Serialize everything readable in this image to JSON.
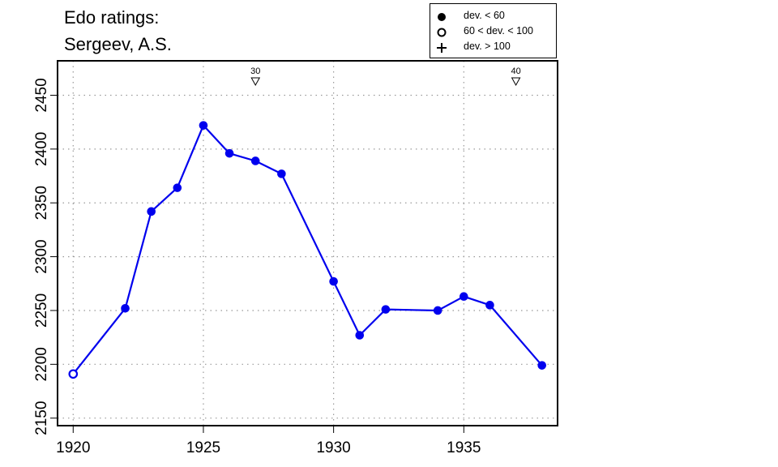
{
  "title_line1": "Edo ratings:",
  "title_line2": "Sergeev, A.S.",
  "legend": [
    {
      "symbol": "filled-circle",
      "label": "dev. < 60"
    },
    {
      "symbol": "open-circle",
      "label": "60 < dev. < 100"
    },
    {
      "symbol": "plus",
      "label": "dev. > 100"
    }
  ],
  "colors": {
    "series": "#0000ee",
    "axis": "#000000",
    "grid": "#999999"
  },
  "chart_data": {
    "type": "line",
    "title": "Edo ratings: Sergeev, A.S.",
    "xlabel": "",
    "ylabel": "",
    "xlim": [
      1919.4,
      1938.6
    ],
    "ylim": [
      2143,
      2482
    ],
    "xticks": [
      1920,
      1925,
      1930,
      1935
    ],
    "yticks": [
      2150,
      2200,
      2250,
      2300,
      2350,
      2400,
      2450
    ],
    "grid": true,
    "legend_position": "top-right",
    "series": [
      {
        "points": [
          {
            "x": 1920,
            "y": 2191,
            "dev": "60-100"
          },
          {
            "x": 1922,
            "y": 2252,
            "dev": "<60"
          },
          {
            "x": 1923,
            "y": 2342,
            "dev": "<60"
          },
          {
            "x": 1924,
            "y": 2364,
            "dev": "<60"
          },
          {
            "x": 1925,
            "y": 2422,
            "dev": "<60"
          },
          {
            "x": 1926,
            "y": 2396,
            "dev": "<60"
          },
          {
            "x": 1927,
            "y": 2389,
            "dev": "<60"
          },
          {
            "x": 1928,
            "y": 2377,
            "dev": "<60"
          },
          {
            "x": 1930,
            "y": 2277,
            "dev": "<60"
          },
          {
            "x": 1931,
            "y": 2227,
            "dev": "<60"
          },
          {
            "x": 1932,
            "y": 2251,
            "dev": "<60"
          },
          {
            "x": 1934,
            "y": 2250,
            "dev": "<60"
          },
          {
            "x": 1935,
            "y": 2263,
            "dev": "<60"
          },
          {
            "x": 1936,
            "y": 2255,
            "dev": "<60"
          },
          {
            "x": 1938,
            "y": 2199,
            "dev": "<60"
          }
        ]
      }
    ],
    "annotations": [
      {
        "x": 1927,
        "label": "30",
        "marker": "triangle-down"
      },
      {
        "x": 1937,
        "label": "40",
        "marker": "triangle-down"
      }
    ]
  }
}
